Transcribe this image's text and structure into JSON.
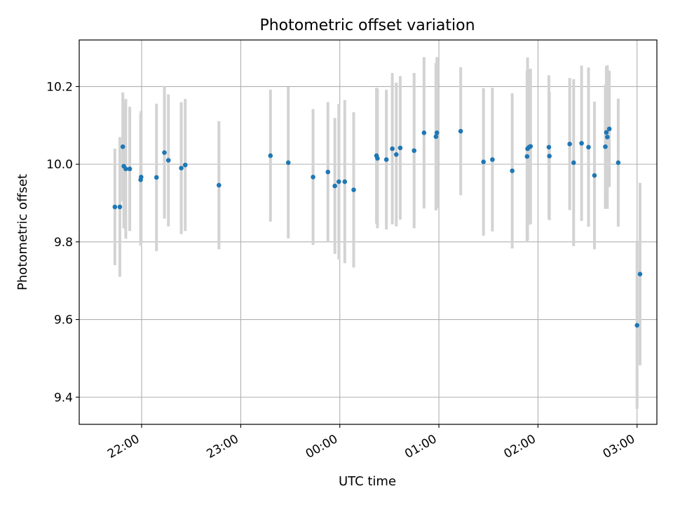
{
  "chart_data": {
    "type": "scatter",
    "title": "Photometric offset variation",
    "xlabel": "UTC time",
    "ylabel": "Photometric offset",
    "x_unit": "hours since 00:00 UTC",
    "xlim": [
      -2.63,
      3.2
    ],
    "ylim": [
      9.33,
      10.32
    ],
    "grid": true,
    "x_ticks": [
      {
        "value": -2,
        "label": "22:00"
      },
      {
        "value": -1,
        "label": "23:00"
      },
      {
        "value": 0,
        "label": "00:00"
      },
      {
        "value": 1,
        "label": "01:00"
      },
      {
        "value": 2,
        "label": "02:00"
      },
      {
        "value": 3,
        "label": "03:00"
      }
    ],
    "y_ticks": [
      {
        "value": 9.4,
        "label": "9.4"
      },
      {
        "value": 9.6,
        "label": "9.6"
      },
      {
        "value": 9.8,
        "label": "9.8"
      },
      {
        "value": 10.0,
        "label": "10.0"
      },
      {
        "value": 10.2,
        "label": "10.2"
      }
    ],
    "series": [
      {
        "name": "offset",
        "marker_color": "#1f77b4",
        "errorbar_color": "#d3d3d3",
        "points": [
          {
            "x": -2.27,
            "y": 9.89,
            "err": 0.15
          },
          {
            "x": -2.22,
            "y": 9.89,
            "err": 0.18
          },
          {
            "x": -2.19,
            "y": 10.045,
            "err": 0.14
          },
          {
            "x": -2.18,
            "y": 9.995,
            "err": 0.16
          },
          {
            "x": -2.16,
            "y": 9.988,
            "err": 0.18
          },
          {
            "x": -2.12,
            "y": 9.988,
            "err": 0.16
          },
          {
            "x": -2.01,
            "y": 9.96,
            "err": 0.17
          },
          {
            "x": -2.005,
            "y": 9.967,
            "err": 0.17
          },
          {
            "x": -1.85,
            "y": 9.966,
            "err": 0.19
          },
          {
            "x": -1.77,
            "y": 10.03,
            "err": 0.17
          },
          {
            "x": -1.73,
            "y": 10.01,
            "err": 0.17
          },
          {
            "x": -1.6,
            "y": 9.99,
            "err": 0.17
          },
          {
            "x": -1.56,
            "y": 9.998,
            "err": 0.17
          },
          {
            "x": -1.22,
            "y": 9.946,
            "err": 0.165
          },
          {
            "x": -0.7,
            "y": 10.022,
            "err": 0.17
          },
          {
            "x": -0.52,
            "y": 10.004,
            "err": 0.195
          },
          {
            "x": -0.27,
            "y": 9.967,
            "err": 0.175
          },
          {
            "x": -0.12,
            "y": 9.98,
            "err": 0.18
          },
          {
            "x": -0.05,
            "y": 9.944,
            "err": 0.175
          },
          {
            "x": -0.01,
            "y": 9.955,
            "err": 0.2
          },
          {
            "x": 0.05,
            "y": 9.955,
            "err": 0.21
          },
          {
            "x": 0.14,
            "y": 9.934,
            "err": 0.2
          },
          {
            "x": 0.37,
            "y": 10.022,
            "err": 0.175
          },
          {
            "x": 0.38,
            "y": 10.015,
            "err": 0.18
          },
          {
            "x": 0.47,
            "y": 10.012,
            "err": 0.18
          },
          {
            "x": 0.53,
            "y": 10.04,
            "err": 0.195
          },
          {
            "x": 0.57,
            "y": 10.025,
            "err": 0.185
          },
          {
            "x": 0.61,
            "y": 10.042,
            "err": 0.185
          },
          {
            "x": 0.75,
            "y": 10.035,
            "err": 0.2
          },
          {
            "x": 0.85,
            "y": 10.081,
            "err": 0.195
          },
          {
            "x": 0.97,
            "y": 10.071,
            "err": 0.19
          },
          {
            "x": 0.98,
            "y": 10.081,
            "err": 0.195
          },
          {
            "x": 1.22,
            "y": 10.085,
            "err": 0.165
          },
          {
            "x": 1.45,
            "y": 10.006,
            "err": 0.19
          },
          {
            "x": 1.54,
            "y": 10.012,
            "err": 0.185
          },
          {
            "x": 1.74,
            "y": 9.983,
            "err": 0.2
          },
          {
            "x": 1.89,
            "y": 10.02,
            "err": 0.22
          },
          {
            "x": 1.895,
            "y": 10.04,
            "err": 0.235
          },
          {
            "x": 1.91,
            "y": 10.044,
            "err": 0.2
          },
          {
            "x": 1.925,
            "y": 10.046,
            "err": 0.2
          },
          {
            "x": 2.11,
            "y": 10.044,
            "err": 0.185
          },
          {
            "x": 2.115,
            "y": 10.021,
            "err": 0.165
          },
          {
            "x": 2.32,
            "y": 10.052,
            "err": 0.17
          },
          {
            "x": 2.36,
            "y": 10.004,
            "err": 0.215
          },
          {
            "x": 2.44,
            "y": 10.054,
            "err": 0.2
          },
          {
            "x": 2.51,
            "y": 10.044,
            "err": 0.205
          },
          {
            "x": 2.57,
            "y": 9.971,
            "err": 0.19
          },
          {
            "x": 2.68,
            "y": 10.045,
            "err": 0.16
          },
          {
            "x": 2.69,
            "y": 10.082,
            "err": 0.17
          },
          {
            "x": 2.7,
            "y": 10.07,
            "err": 0.185
          },
          {
            "x": 2.72,
            "y": 10.091,
            "err": 0.15
          },
          {
            "x": 2.81,
            "y": 10.004,
            "err": 0.165
          },
          {
            "x": 3.0,
            "y": 9.585,
            "err": 0.215
          },
          {
            "x": 3.03,
            "y": 9.717,
            "err": 0.235
          }
        ]
      }
    ]
  }
}
